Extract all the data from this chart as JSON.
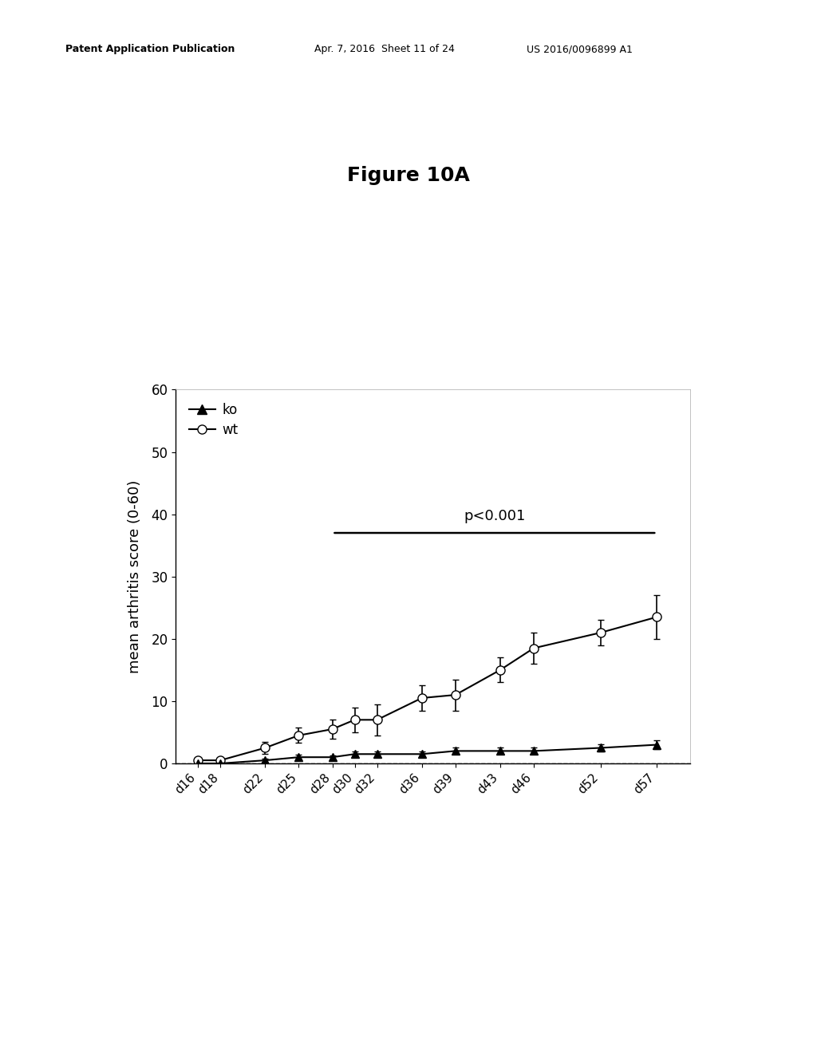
{
  "title": "Figure 10A",
  "ylabel": "mean arthritis score (0-60)",
  "x_labels": [
    "d16",
    "d18",
    "d22",
    "d25",
    "d28",
    "d30",
    "d32",
    "d36",
    "d39",
    "d43",
    "d46",
    "d52",
    "d57"
  ],
  "x_values": [
    16,
    18,
    22,
    25,
    28,
    30,
    32,
    36,
    39,
    43,
    46,
    52,
    57
  ],
  "wt_mean": [
    0.5,
    0.5,
    2.5,
    4.5,
    5.5,
    7.0,
    7.0,
    10.5,
    11.0,
    15.0,
    18.5,
    21.0,
    23.5
  ],
  "wt_err": [
    0.3,
    0.3,
    1.0,
    1.2,
    1.5,
    2.0,
    2.5,
    2.0,
    2.5,
    2.0,
    2.5,
    2.0,
    3.5
  ],
  "ko_mean": [
    0.0,
    0.0,
    0.5,
    1.0,
    1.0,
    1.5,
    1.5,
    1.5,
    2.0,
    2.0,
    2.0,
    2.5,
    3.0
  ],
  "ko_err": [
    0.1,
    0.1,
    0.3,
    0.4,
    0.3,
    0.4,
    0.4,
    0.4,
    0.5,
    0.5,
    0.5,
    0.6,
    0.7
  ],
  "ylim": [
    0,
    60
  ],
  "yticks": [
    0,
    10,
    20,
    30,
    40,
    50,
    60
  ],
  "xlim_min": 14,
  "xlim_max": 60,
  "sig_x_start": 28,
  "sig_x_end": 57,
  "sig_y": 37,
  "sig_label": "p<0.001",
  "header_pub": "Patent Application Publication",
  "header_date": "Apr. 7, 2016  Sheet 11 of 24",
  "header_patent": "US 2016/0096899 A1",
  "background_color": "#ffffff",
  "title_fontsize": 18,
  "axis_fontsize": 13,
  "tick_fontsize": 12,
  "xtick_fontsize": 11,
  "legend_fontsize": 12,
  "header_fontsize": 9
}
